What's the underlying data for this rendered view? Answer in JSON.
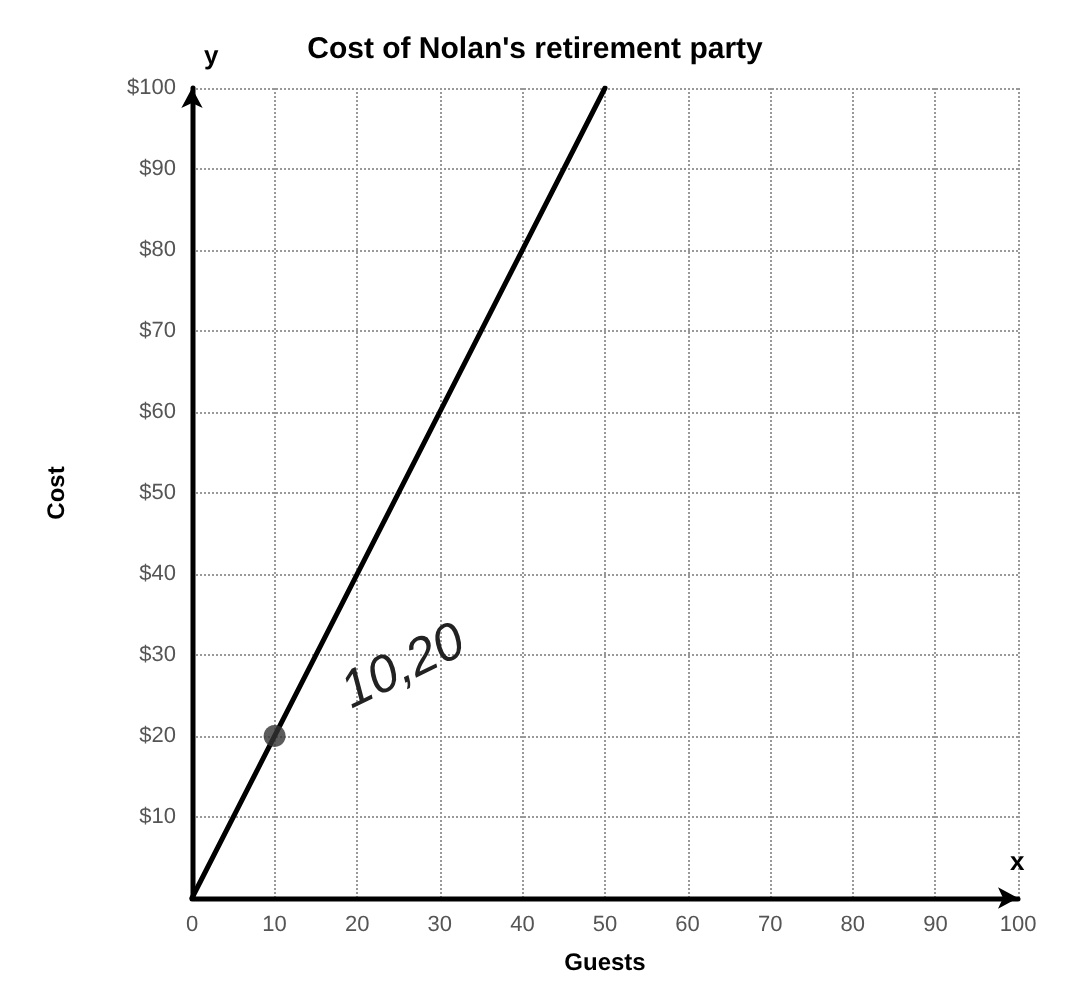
{
  "chart_data": {
    "type": "line",
    "title": "Cost of Nolan's retirement party",
    "xlabel": "Guests",
    "ylabel": "Cost",
    "xlim": [
      0,
      100
    ],
    "ylim": [
      0,
      100
    ],
    "xticks": [
      0,
      10,
      20,
      30,
      40,
      50,
      60,
      70,
      80,
      90,
      100
    ],
    "yticks": [
      {
        "value": 0,
        "label": null
      },
      {
        "value": 10,
        "label": "$10"
      },
      {
        "value": 20,
        "label": "$20"
      },
      {
        "value": 30,
        "label": "$30"
      },
      {
        "value": 40,
        "label": "$40"
      },
      {
        "value": 50,
        "label": "$50"
      },
      {
        "value": 60,
        "label": "$60"
      },
      {
        "value": 70,
        "label": "$70"
      },
      {
        "value": 80,
        "label": "$80"
      },
      {
        "value": 90,
        "label": "$90"
      },
      {
        "value": 100,
        "label": "$100"
      }
    ],
    "series": [
      {
        "color": "#000000",
        "x": [
          0,
          50
        ],
        "values": [
          0,
          100
        ],
        "marker": "none"
      },
      {
        "type": "scatter",
        "color": "#333333",
        "x": [
          10
        ],
        "values": [
          20
        ],
        "marker": "circle"
      }
    ],
    "annotations": [
      "x",
      "y",
      {
        "text": "10,20",
        "x": 10,
        "y": 20
      }
    ],
    "grid": true,
    "line_style": "solid"
  }
}
